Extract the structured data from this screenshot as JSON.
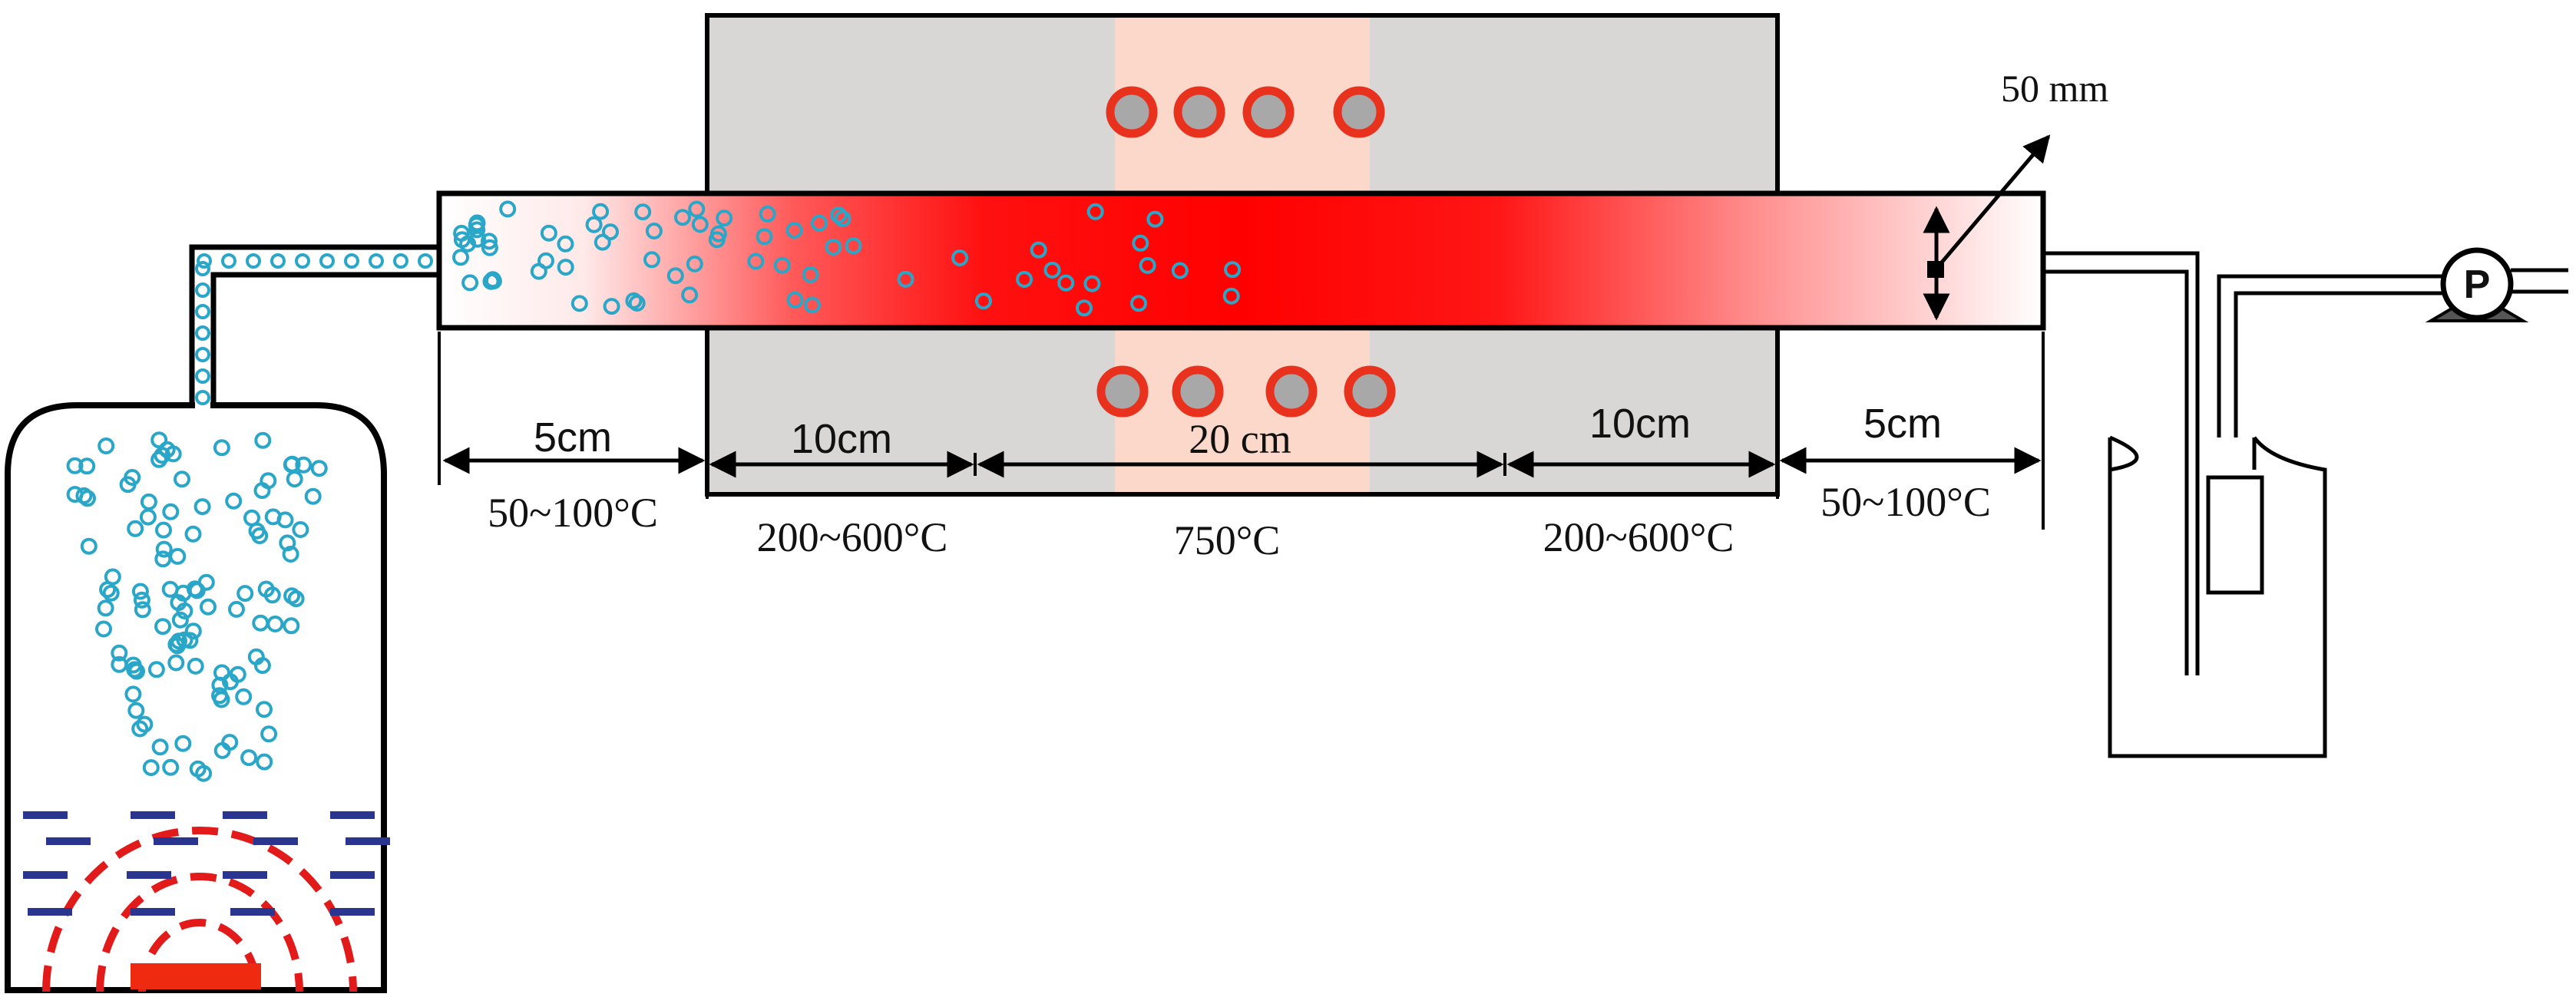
{
  "diameter_label": "50 mm",
  "zones": [
    {
      "length": "5cm",
      "temperature": "50~100°C"
    },
    {
      "length": "10cm",
      "temperature": "200~600°C"
    },
    {
      "length": "20 cm",
      "temperature": "750°C"
    },
    {
      "length": "10cm",
      "temperature": "200~600°C"
    },
    {
      "length": "5cm",
      "temperature": "50~100°C"
    }
  ],
  "pump_label": "P",
  "colors": {
    "tube_hot": "#ff0000",
    "furnace_body": "#d9d6d6",
    "hot_zone": "#fbd8c9",
    "heater_ring": "#e8321e",
    "heater_core": "#a8a8a8",
    "droplet": "#2aa7c8",
    "ultrasonic_waves": "#e21a1a",
    "water_lines": "#2a3590",
    "transducer": "#ee2a10"
  }
}
